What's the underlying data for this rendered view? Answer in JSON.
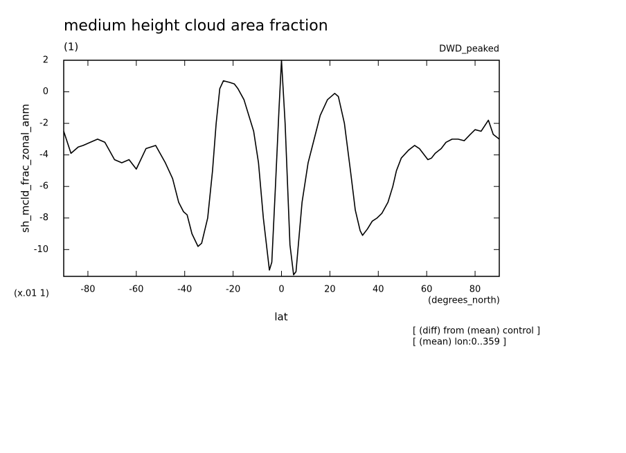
{
  "chart_data": {
    "type": "line",
    "title": "medium height cloud area fraction",
    "subtitle": "(1)",
    "dataset_label": "DWD_peaked",
    "y_label": "sh_mcld_frac_zonal_anm",
    "y_scale_label": "(x.01 1)",
    "x_label": "lat",
    "x_units": "(degrees_north)",
    "notes": [
      "[ (diff) from (mean) control ]",
      "[ (mean) lon:0..359 ]"
    ],
    "xlim": [
      -90,
      90
    ],
    "ylim": [
      -11.7,
      2
    ],
    "xticks": [
      -80,
      -60,
      -40,
      -20,
      0,
      20,
      40,
      60,
      80
    ],
    "yticks": [
      -10,
      -8,
      -6,
      -4,
      -2,
      0,
      2
    ],
    "color": "#000000",
    "x": [
      -90,
      -87,
      -84,
      -82,
      -76,
      -73,
      -69,
      -66,
      -63,
      -60,
      -56,
      -52,
      -48,
      -45,
      -42.5,
      -40.5,
      -39,
      -37,
      -34.5,
      -33,
      -30.5,
      -28.5,
      -27,
      -25.5,
      -24,
      -21.5,
      -19.5,
      -18,
      -15.5,
      -13.5,
      -11.5,
      -9.5,
      -7.5,
      -5,
      -4,
      -2.5,
      -1,
      0,
      1.5,
      3.5,
      5,
      6,
      8.5,
      11,
      13.5,
      16,
      19,
      22,
      23.5,
      26,
      28.5,
      30.5,
      32.5,
      33.5,
      35.5,
      37.5,
      39.5,
      41.5,
      44,
      46,
      47.5,
      49.5,
      52.5,
      55,
      57,
      60.5,
      62,
      63.5,
      66,
      68,
      70.5,
      73,
      75.5,
      78,
      80,
      82.5,
      85.5,
      87.5,
      90
    ],
    "values": [
      -2.5,
      -3.9,
      -3.5,
      -3.4,
      -3.0,
      -3.2,
      -4.3,
      -4.5,
      -4.3,
      -4.9,
      -3.6,
      -3.4,
      -4.5,
      -5.5,
      -7.0,
      -7.6,
      -7.8,
      -9.0,
      -9.8,
      -9.6,
      -8.0,
      -5.0,
      -2.0,
      0.2,
      0.7,
      0.6,
      0.5,
      0.2,
      -0.5,
      -1.5,
      -2.5,
      -4.5,
      -8.0,
      -11.3,
      -10.8,
      -6.0,
      -1.0,
      2.0,
      -2.0,
      -9.7,
      -11.6,
      -11.4,
      -7.0,
      -4.5,
      -3.0,
      -1.5,
      -0.5,
      -0.1,
      -0.3,
      -2.0,
      -5.0,
      -7.5,
      -8.8,
      -9.1,
      -8.7,
      -8.2,
      -8.0,
      -7.7,
      -7.0,
      -6.0,
      -5.0,
      -4.2,
      -3.7,
      -3.4,
      -3.6,
      -4.3,
      -4.2,
      -3.9,
      -3.6,
      -3.2,
      -3.0,
      -3.0,
      -3.1,
      -2.7,
      -2.4,
      -2.5,
      -1.8,
      -2.7,
      -3.0
    ]
  }
}
